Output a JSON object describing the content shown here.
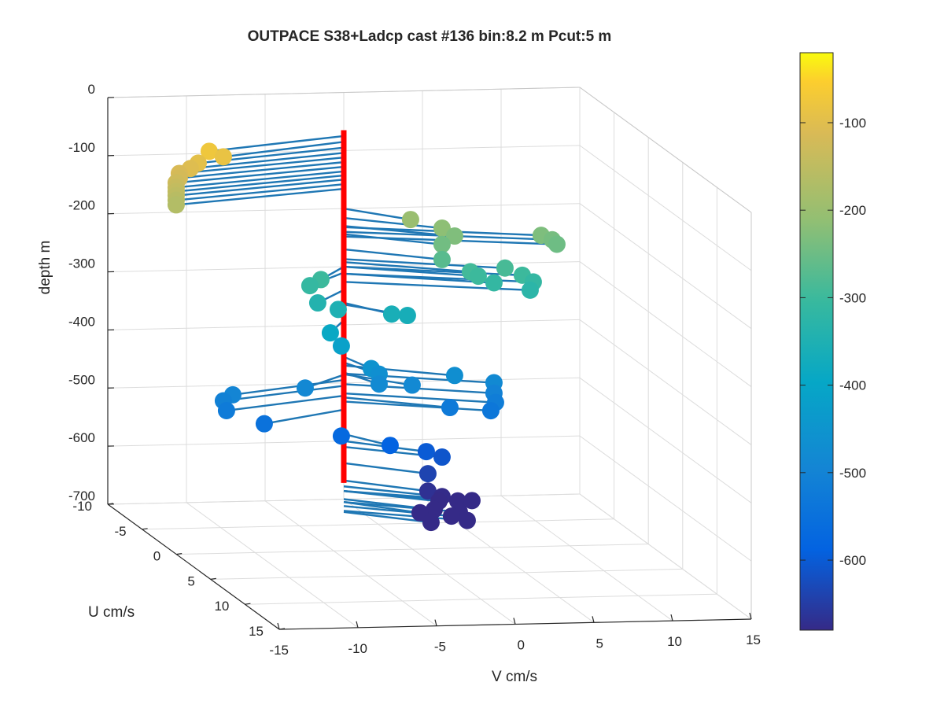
{
  "chart_data": {
    "type": "scatter",
    "title": "OUTPACE S38+Ladcp cast #136 bin:8.2 m  Pcut:5 m",
    "xlabel": "V cm/s",
    "ylabel": "U cm/s",
    "zlabel": "depth m",
    "xlim": [
      -15,
      15
    ],
    "ylim": [
      -10,
      15
    ],
    "zlim": [
      -700,
      0
    ],
    "x_ticks": [
      "-15",
      "-10",
      "-5",
      "0",
      "5",
      "10",
      "15"
    ],
    "y_ticks": [
      "-10",
      "-5",
      "0",
      "5",
      "10",
      "15"
    ],
    "z_ticks": [
      "0",
      "-100",
      "-200",
      "-300",
      "-400",
      "-500",
      "-600",
      "-700"
    ],
    "colorbar": {
      "range": [
        -680,
        -20
      ],
      "ticks": [
        "-100",
        "-200",
        "-300",
        "-400",
        "-500",
        "-600"
      ],
      "colormap": "parula"
    },
    "grid": true,
    "profile_line_color": "#ff0000",
    "vector_color": "#1f77b4",
    "points": [
      {
        "v": -9.6,
        "u": -7.6,
        "depth": -75
      },
      {
        "v": -8.7,
        "u": -7.6,
        "depth": -85
      },
      {
        "v": -10.3,
        "u": -7.6,
        "depth": -95
      },
      {
        "v": -10.8,
        "u": -7.6,
        "depth": -104
      },
      {
        "v": -11.5,
        "u": -7.6,
        "depth": -112
      },
      {
        "v": -11.5,
        "u": -7.6,
        "depth": -120
      },
      {
        "v": -11.7,
        "u": -7.6,
        "depth": -128
      },
      {
        "v": -11.7,
        "u": -7.6,
        "depth": -136
      },
      {
        "v": -11.7,
        "u": -7.6,
        "depth": -143
      },
      {
        "v": -11.7,
        "u": -7.6,
        "depth": -150
      },
      {
        "v": -11.7,
        "u": -7.6,
        "depth": -158
      },
      {
        "v": -11.7,
        "u": -7.6,
        "depth": -166
      },
      {
        "v": 3.2,
        "u": -7.6,
        "depth": -200
      },
      {
        "v": 5.2,
        "u": -7.6,
        "depth": -216
      },
      {
        "v": 6.0,
        "u": -7.6,
        "depth": -230
      },
      {
        "v": 5.2,
        "u": -7.6,
        "depth": -244
      },
      {
        "v": 11.5,
        "u": -7.6,
        "depth": -232
      },
      {
        "v": 12.2,
        "u": -7.6,
        "depth": -240
      },
      {
        "v": 12.5,
        "u": -7.6,
        "depth": -248
      },
      {
        "v": 5.2,
        "u": -7.6,
        "depth": -270
      },
      {
        "v": 7.0,
        "u": -7.6,
        "depth": -292
      },
      {
        "v": 9.2,
        "u": -7.6,
        "depth": -287
      },
      {
        "v": 10.3,
        "u": -7.6,
        "depth": -300
      },
      {
        "v": 7.5,
        "u": -7.6,
        "depth": -300
      },
      {
        "v": 8.5,
        "u": -7.6,
        "depth": -312
      },
      {
        "v": 11.0,
        "u": -7.6,
        "depth": -312
      },
      {
        "v": 10.8,
        "u": -7.6,
        "depth": -326
      },
      {
        "v": -2.5,
        "u": -7.6,
        "depth": -300
      },
      {
        "v": -3.2,
        "u": -7.6,
        "depth": -310
      },
      {
        "v": -2.7,
        "u": -7.6,
        "depth": -340
      },
      {
        "v": -1.4,
        "u": -7.6,
        "depth": -352
      },
      {
        "v": 2.0,
        "u": -7.6,
        "depth": -362
      },
      {
        "v": 3.0,
        "u": -7.6,
        "depth": -365
      },
      {
        "v": -1.9,
        "u": -7.6,
        "depth": -392
      },
      {
        "v": -1.2,
        "u": -7.6,
        "depth": -415
      },
      {
        "v": 0.7,
        "u": -7.6,
        "depth": -455
      },
      {
        "v": 1.2,
        "u": -7.6,
        "depth": -465
      },
      {
        "v": 1.2,
        "u": -7.6,
        "depth": -482
      },
      {
        "v": 3.3,
        "u": -7.6,
        "depth": -485
      },
      {
        "v": 6.0,
        "u": -7.6,
        "depth": -470
      },
      {
        "v": 8.5,
        "u": -7.6,
        "depth": -484
      },
      {
        "v": 8.5,
        "u": -7.6,
        "depth": -502
      },
      {
        "v": 8.6,
        "u": -7.6,
        "depth": -518
      },
      {
        "v": 8.3,
        "u": -7.6,
        "depth": -532
      },
      {
        "v": 5.7,
        "u": -7.6,
        "depth": -525
      },
      {
        "v": -3.5,
        "u": -7.6,
        "depth": -486
      },
      {
        "v": -8.1,
        "u": -7.6,
        "depth": -495
      },
      {
        "v": -8.7,
        "u": -7.6,
        "depth": -505
      },
      {
        "v": -8.5,
        "u": -7.6,
        "depth": -522
      },
      {
        "v": -6.1,
        "u": -7.6,
        "depth": -546
      },
      {
        "v": -1.2,
        "u": -7.6,
        "depth": -570
      },
      {
        "v": 1.9,
        "u": -7.6,
        "depth": -588
      },
      {
        "v": 4.2,
        "u": -7.6,
        "depth": -600
      },
      {
        "v": 5.2,
        "u": -7.6,
        "depth": -610
      },
      {
        "v": 4.3,
        "u": -7.6,
        "depth": -638
      },
      {
        "v": 4.3,
        "u": -7.6,
        "depth": -668
      },
      {
        "v": 5.2,
        "u": -7.6,
        "depth": -678
      },
      {
        "v": 5.0,
        "u": -7.6,
        "depth": -686
      },
      {
        "v": 6.2,
        "u": -7.6,
        "depth": -686
      },
      {
        "v": 7.1,
        "u": -7.6,
        "depth": -686
      },
      {
        "v": 4.7,
        "u": -7.6,
        "depth": -700
      },
      {
        "v": 6.3,
        "u": -7.6,
        "depth": -705
      },
      {
        "v": 5.8,
        "u": -7.6,
        "depth": -712
      },
      {
        "v": 6.8,
        "u": -7.6,
        "depth": -720
      },
      {
        "v": 3.8,
        "u": -7.6,
        "depth": -705
      },
      {
        "v": 4.5,
        "u": -7.6,
        "depth": -722
      }
    ]
  }
}
